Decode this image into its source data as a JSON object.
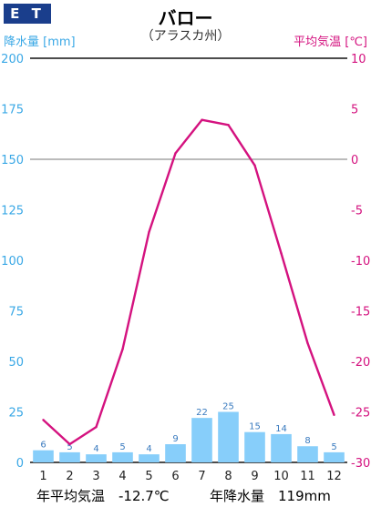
{
  "badge": "E T",
  "title": "バロー",
  "subtitle": "（アラスカ州）",
  "footer": {
    "avg_temp": "年平均気温　-12.7℃",
    "precip": "年降水量　119mm"
  },
  "colors": {
    "bars": "#87cefa",
    "line": "#d4127f",
    "left_axis": "#3aa8e6",
    "right_axis": "#d4127f",
    "badge": "#1a3e8c"
  },
  "chart_data": {
    "type": "bar+line",
    "title": "バロー",
    "subtitle": "（アラスカ州）",
    "categories": [
      "1",
      "2",
      "3",
      "4",
      "5",
      "6",
      "7",
      "8",
      "9",
      "10",
      "11",
      "12"
    ],
    "ylabel_left": "降水量 [mm]",
    "ylabel_right": "平均気温 [℃]",
    "ylim_left": [
      0,
      200
    ],
    "ylim_right": [
      -30,
      10
    ],
    "yticks_left": [
      0,
      25,
      50,
      75,
      100,
      125,
      150,
      175,
      200
    ],
    "yticks_right": [
      -30,
      -25,
      -20,
      -15,
      -10,
      -5,
      0,
      5,
      10
    ],
    "series": [
      {
        "name": "降水量",
        "type": "bar",
        "axis": "left",
        "values": [
          6,
          5,
          4,
          5,
          4,
          9,
          22,
          25,
          15,
          14,
          8,
          5
        ]
      },
      {
        "name": "平均気温",
        "type": "line",
        "axis": "right",
        "values": [
          -25.8,
          -28.2,
          -26.5,
          -18.8,
          -7.2,
          0.6,
          3.9,
          3.4,
          -0.6,
          -9.3,
          -18.2,
          -25.3
        ]
      }
    ],
    "bar_labels": [
      "6",
      "5",
      "4",
      "5",
      "4",
      "9",
      "22",
      "25",
      "15",
      "14",
      "8",
      "5"
    ],
    "gridlines_at_left": [
      200,
      150,
      0
    ]
  }
}
